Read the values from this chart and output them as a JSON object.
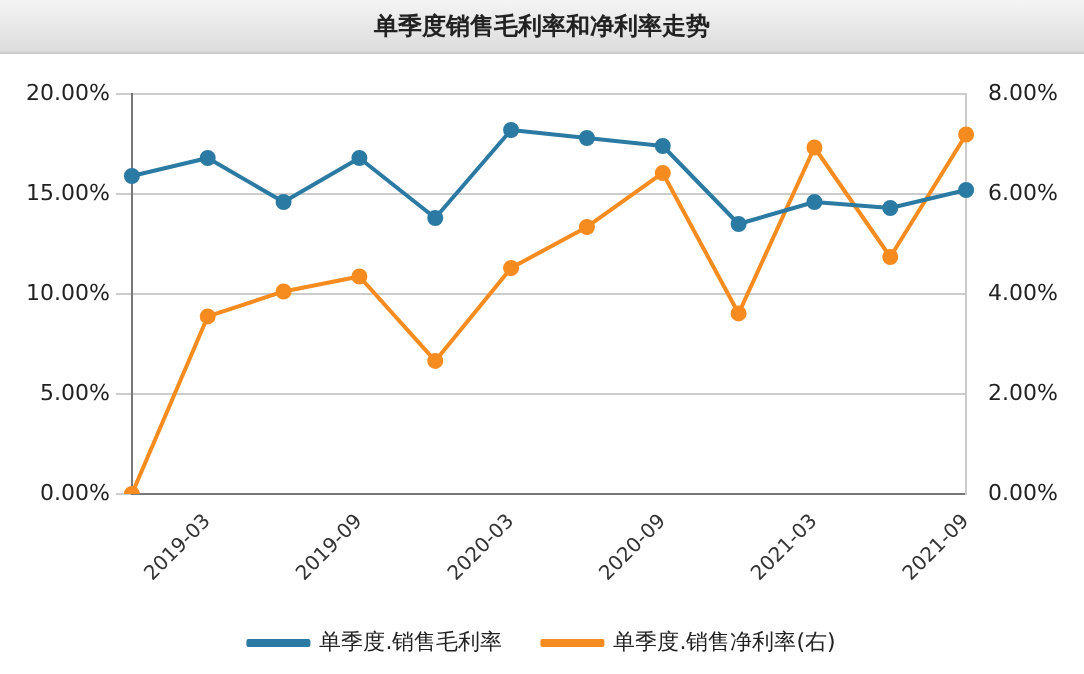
{
  "chart_data": {
    "type": "line",
    "title": "单季度销售毛利率和净利率走势",
    "categories": [
      null,
      "2019-03",
      null,
      "2019-09",
      null,
      "2020-03",
      null,
      "2020-09",
      null,
      "2021-03",
      null,
      "2021-09"
    ],
    "series": [
      {
        "name": "单季度.销售毛利率",
        "color": "#2a7aa3",
        "values": [
          15.9,
          16.8,
          14.6,
          16.8,
          13.8,
          18.2,
          17.8,
          17.4,
          13.5,
          14.6,
          14.3,
          15.2
        ]
      },
      {
        "name": "单季度.销售净利率(右)",
        "color": "#f68b1f",
        "axis": "y2",
        "values": [
          0,
          3.55,
          4.05,
          4.35,
          2.66,
          4.52,
          5.34,
          6.42,
          3.61,
          6.93,
          4.74,
          7.19
        ]
      }
    ],
    "ylim": [
      0,
      20
    ],
    "yticks": [
      {
        "value": 0,
        "label": "0.00%"
      },
      {
        "value": 5,
        "label": "5.00%"
      },
      {
        "value": 10,
        "label": "10.00%"
      },
      {
        "value": 15,
        "label": "15.00%"
      },
      {
        "value": 20,
        "label": "20.00%"
      }
    ],
    "y2lim": [
      0,
      8
    ],
    "y2ticks": [
      {
        "value": 0,
        "label": "0.00%"
      },
      {
        "value": 2,
        "label": "2.00%"
      },
      {
        "value": 4,
        "label": "4.00%"
      },
      {
        "value": 6,
        "label": "6.00%"
      },
      {
        "value": 8,
        "label": "8.00%"
      }
    ],
    "grid": "y",
    "legend": "bottom",
    "marker": "circle",
    "line_style": "solid"
  }
}
